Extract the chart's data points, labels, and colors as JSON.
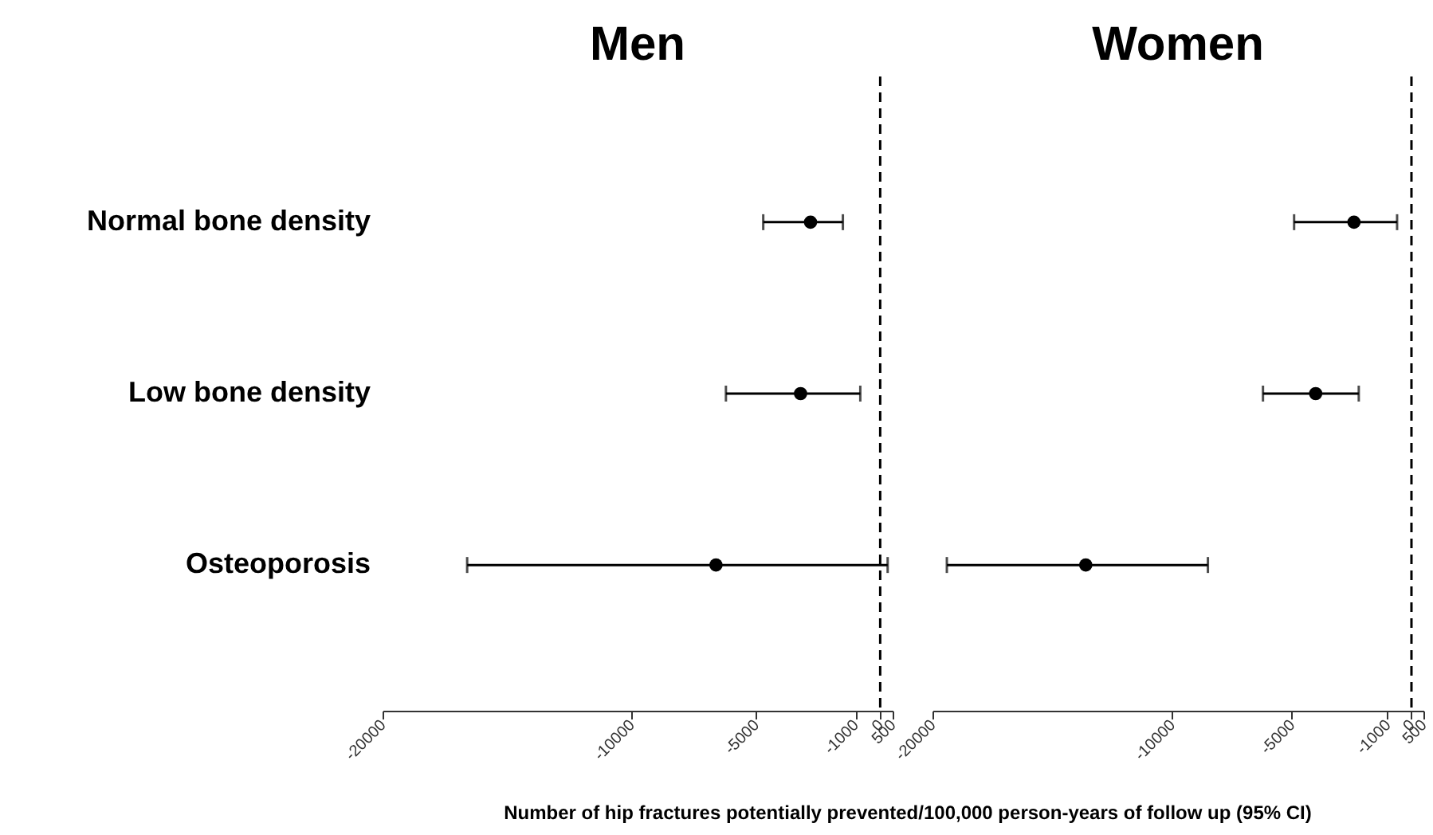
{
  "chart_data": [
    {
      "type": "scatter",
      "title": "Men",
      "orientation": "horizontal",
      "categories": [
        "Normal bone density",
        "Low bone density",
        "Osteoporosis"
      ],
      "values": [
        -2800,
        -3200,
        -6600
      ],
      "errors": [
        [
          -4700,
          -1500
        ],
        [
          -6200,
          -800
        ],
        [
          -16600,
          300
        ]
      ],
      "color": "#000000",
      "marker": "circle",
      "xlim": [
        -20000,
        500
      ],
      "xticks": [
        -20000,
        -10000,
        -5000,
        -1000,
        0,
        500
      ],
      "xlabel": "Number of hip fractures potentially prevented/100,000 person-years of follow up (95% CI)",
      "ref_lines": [
        {
          "axis": "x",
          "value": 0,
          "line_style": "dashed",
          "color": "#000000"
        }
      ],
      "grid": false
    },
    {
      "type": "scatter",
      "title": "Women",
      "orientation": "horizontal",
      "categories": [
        null,
        null,
        null
      ],
      "values": [
        -2400,
        -4000,
        -13600
      ],
      "errors": [
        [
          -4900,
          -600
        ],
        [
          -6200,
          -2200
        ],
        [
          -19400,
          -8500
        ]
      ],
      "color": "#000000",
      "marker": "circle",
      "xlim": [
        -20000,
        500
      ],
      "xticks": [
        -20000,
        -10000,
        -5000,
        -1000,
        0,
        500
      ],
      "ref_lines": [
        {
          "axis": "x",
          "value": 0,
          "line_style": "dashed",
          "color": "#000000"
        }
      ],
      "grid": false,
      "tick_labels": "x"
    }
  ]
}
